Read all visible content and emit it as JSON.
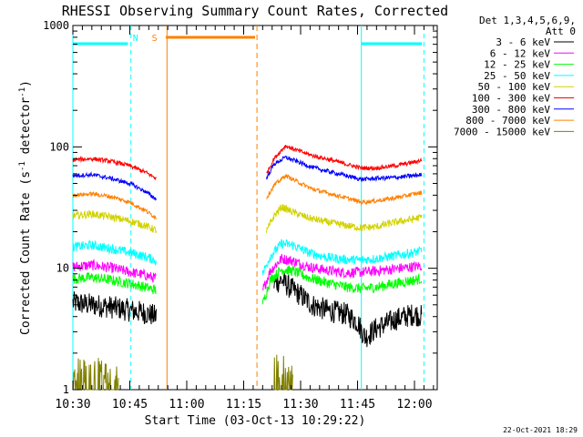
{
  "chart_data": {
    "type": "line",
    "title": "RHESSI Observing Summary Count Rates, Corrected",
    "xlabel": "Start Time (03-Oct-13 10:29:22)",
    "ylabel_main": "Corrected Count Rate (s",
    "ylabel_sup1": "-1",
    "ylabel_mid": " detector",
    "ylabel_sup2": "-1",
    "ylabel_end": ")",
    "y_scale": "log",
    "ylim": [
      1,
      1000
    ],
    "y_ticks": [
      {
        "value": 1,
        "label": "1"
      },
      {
        "value": 10,
        "label": "10"
      },
      {
        "value": 100,
        "label": "100"
      },
      {
        "value": 1000,
        "label": "1000"
      }
    ],
    "xlim_minutes": [
      0,
      96
    ],
    "x_ticks": [
      {
        "minutes": 0,
        "label": "10:30"
      },
      {
        "minutes": 15,
        "label": "10:45"
      },
      {
        "minutes": 30,
        "label": "11:00"
      },
      {
        "minutes": 45,
        "label": "11:15"
      },
      {
        "minutes": 60,
        "label": "11:30"
      },
      {
        "minutes": 75,
        "label": "11:45"
      },
      {
        "minutes": 90,
        "label": "12:00"
      }
    ],
    "legend_title": "Det 1,3,4,5,6,9,",
    "legend_subtitle": "Att 0",
    "legend_placement": "right",
    "series": [
      {
        "name": "3 - 6 keV",
        "color": "#000000",
        "pre": [
          [
            0,
            5.2
          ],
          [
            5,
            5.0
          ],
          [
            10,
            4.8
          ],
          [
            15,
            4.5
          ],
          [
            19,
            4.3
          ],
          [
            22,
            4.0
          ]
        ],
        "post": [
          [
            53,
            7.5
          ],
          [
            55,
            8.0
          ],
          [
            57,
            7.0
          ],
          [
            60,
            6.0
          ],
          [
            63,
            5.0
          ],
          [
            67,
            4.5
          ],
          [
            72,
            4.2
          ],
          [
            75,
            3.6
          ],
          [
            77,
            2.7
          ],
          [
            80,
            3.2
          ],
          [
            85,
            3.8
          ],
          [
            90,
            4.2
          ],
          [
            92,
            4.0
          ]
        ]
      },
      {
        "name": "6 - 12 keV",
        "color": "#ff00ff",
        "pre": [
          [
            0,
            10.3
          ],
          [
            5,
            10.6
          ],
          [
            10,
            10.1
          ],
          [
            15,
            9.3
          ],
          [
            19,
            8.8
          ],
          [
            22,
            8.2
          ]
        ],
        "post": [
          [
            50,
            6.5
          ],
          [
            52,
            9.5
          ],
          [
            55,
            12.0
          ],
          [
            58,
            11.5
          ],
          [
            62,
            10.3
          ],
          [
            67,
            9.6
          ],
          [
            72,
            9.2
          ],
          [
            76,
            9.3
          ],
          [
            80,
            9.5
          ],
          [
            85,
            9.9
          ],
          [
            90,
            10.3
          ],
          [
            92,
            10.5
          ]
        ]
      },
      {
        "name": "12 - 25 keV",
        "color": "#00ff00",
        "pre": [
          [
            0,
            8.2
          ],
          [
            5,
            8.4
          ],
          [
            10,
            8.0
          ],
          [
            15,
            7.5
          ],
          [
            19,
            7.0
          ],
          [
            22,
            6.6
          ]
        ],
        "post": [
          [
            50,
            5.0
          ],
          [
            52,
            8.0
          ],
          [
            55,
            9.8
          ],
          [
            58,
            9.5
          ],
          [
            62,
            8.4
          ],
          [
            67,
            7.6
          ],
          [
            72,
            7.0
          ],
          [
            76,
            6.8
          ],
          [
            80,
            7.0
          ],
          [
            85,
            7.5
          ],
          [
            90,
            8.0
          ],
          [
            92,
            8.2
          ]
        ]
      },
      {
        "name": "25 - 50 keV",
        "color": "#00ffff",
        "pre": [
          [
            0,
            15.0
          ],
          [
            5,
            15.5
          ],
          [
            10,
            14.5
          ],
          [
            15,
            13.5
          ],
          [
            19,
            12.5
          ],
          [
            22,
            11.5
          ]
        ],
        "post": [
          [
            50,
            9.0
          ],
          [
            52,
            12.5
          ],
          [
            55,
            16.0
          ],
          [
            58,
            15.5
          ],
          [
            62,
            13.5
          ],
          [
            67,
            12.3
          ],
          [
            72,
            11.8
          ],
          [
            76,
            11.7
          ],
          [
            80,
            12.0
          ],
          [
            85,
            12.7
          ],
          [
            90,
            13.5
          ],
          [
            92,
            14.0
          ]
        ]
      },
      {
        "name": "50 - 100 keV",
        "color": "#d2d200",
        "pre": [
          [
            0,
            27.0
          ],
          [
            5,
            28.0
          ],
          [
            10,
            26.5
          ],
          [
            15,
            24.5
          ],
          [
            19,
            22.5
          ],
          [
            22,
            20.5
          ]
        ],
        "post": [
          [
            51,
            20.0
          ],
          [
            53,
            27.0
          ],
          [
            55,
            32.0
          ],
          [
            58,
            29.0
          ],
          [
            62,
            26.0
          ],
          [
            67,
            24.0
          ],
          [
            72,
            22.5
          ],
          [
            76,
            21.5
          ],
          [
            80,
            22.0
          ],
          [
            85,
            24.0
          ],
          [
            90,
            25.5
          ],
          [
            92,
            26.5
          ]
        ]
      },
      {
        "name": "100 - 300 keV",
        "color": "#ff0000",
        "pre": [
          [
            0,
            78.0
          ],
          [
            5,
            80.0
          ],
          [
            10,
            76.0
          ],
          [
            15,
            70.0
          ],
          [
            19,
            62.0
          ],
          [
            22,
            55.0
          ]
        ],
        "post": [
          [
            51,
            60.0
          ],
          [
            53,
            80.0
          ],
          [
            56,
            102.0
          ],
          [
            59,
            94.0
          ],
          [
            63,
            85.0
          ],
          [
            68,
            78.0
          ],
          [
            72,
            72.0
          ],
          [
            76,
            67.0
          ],
          [
            80,
            67.0
          ],
          [
            85,
            70.0
          ],
          [
            90,
            75.0
          ],
          [
            92,
            78.0
          ]
        ]
      },
      {
        "name": "300 - 800 keV",
        "color": "#0000ff",
        "pre": [
          [
            0,
            58.0
          ],
          [
            5,
            59.0
          ],
          [
            10,
            55.0
          ],
          [
            15,
            50.0
          ],
          [
            19,
            43.0
          ],
          [
            22,
            37.0
          ]
        ],
        "post": [
          [
            51,
            55.0
          ],
          [
            53,
            72.0
          ],
          [
            56,
            82.0
          ],
          [
            59,
            76.0
          ],
          [
            63,
            68.0
          ],
          [
            68,
            62.0
          ],
          [
            72,
            58.0
          ],
          [
            76,
            54.0
          ],
          [
            80,
            55.0
          ],
          [
            85,
            56.0
          ],
          [
            90,
            58.0
          ],
          [
            92,
            59.0
          ]
        ]
      },
      {
        "name": "800 - 7000 keV",
        "color": "#ff8000",
        "pre": [
          [
            0,
            40.0
          ],
          [
            5,
            41.0
          ],
          [
            10,
            39.0
          ],
          [
            15,
            35.0
          ],
          [
            19,
            30.0
          ],
          [
            22,
            26.0
          ]
        ],
        "post": [
          [
            51,
            38.0
          ],
          [
            53,
            48.0
          ],
          [
            56,
            58.0
          ],
          [
            59,
            52.0
          ],
          [
            63,
            45.0
          ],
          [
            68,
            41.0
          ],
          [
            72,
            38.0
          ],
          [
            76,
            35.0
          ],
          [
            80,
            36.0
          ],
          [
            85,
            38.0
          ],
          [
            90,
            41.0
          ],
          [
            92,
            42.0
          ]
        ]
      },
      {
        "name": "7000 - 15000 keV",
        "color": "#808000",
        "pre": [
          [
            0,
            1.4
          ],
          [
            5,
            1.5
          ],
          [
            10,
            1.4
          ],
          [
            12,
            1.3
          ]
        ],
        "post": [
          [
            53,
            1.5
          ],
          [
            56,
            1.6
          ],
          [
            58,
            1.3
          ]
        ]
      }
    ],
    "attenuator_segments_cyan": [
      [
        0,
        14.5
      ],
      [
        76,
        92
      ]
    ],
    "attenuator_segments_orange": [
      [
        24.5,
        48
      ]
    ],
    "markers": [
      {
        "label": "N",
        "minutes": 16.5,
        "color": "#00ffff"
      },
      {
        "label": "S",
        "minutes": 21.5,
        "color": "#ff8000"
      }
    ],
    "cyan_vlines": [
      0,
      15.3,
      76,
      92.5
    ],
    "orange_vlines_solid": [
      24.8
    ],
    "orange_vlines_dashed": [
      48.5
    ],
    "data_gap_minutes": [
      22.5,
      48.5
    ],
    "timestamp": "22-Oct-2021 18:29"
  }
}
